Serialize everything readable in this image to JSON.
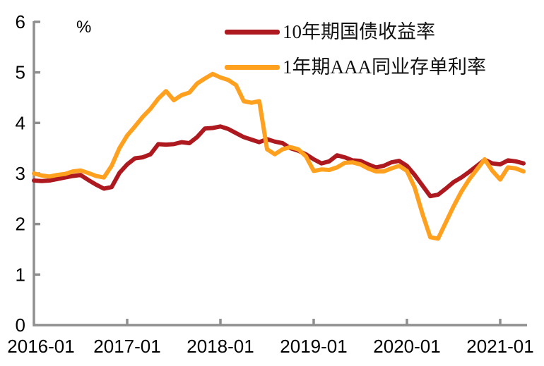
{
  "chart_data": {
    "type": "line",
    "title": "",
    "unit_label": "%",
    "xlabel": "",
    "ylabel": "%",
    "ylim": [
      0,
      6
    ],
    "y_ticks": [
      "0",
      "1",
      "2",
      "3",
      "4",
      "5",
      "6"
    ],
    "x_tick_labels": [
      "2016-01",
      "2017-01",
      "2018-01",
      "2019-01",
      "2020-01",
      "2021-01"
    ],
    "grid": false,
    "legend_position": "top-center",
    "axis_color": "#8f8f8f",
    "x": [
      "2016-01",
      "2016-02",
      "2016-03",
      "2016-04",
      "2016-05",
      "2016-06",
      "2016-07",
      "2016-08",
      "2016-09",
      "2016-10",
      "2016-11",
      "2016-12",
      "2017-01",
      "2017-02",
      "2017-03",
      "2017-04",
      "2017-05",
      "2017-06",
      "2017-07",
      "2017-08",
      "2017-09",
      "2017-10",
      "2017-11",
      "2017-12",
      "2018-01",
      "2018-02",
      "2018-03",
      "2018-04",
      "2018-05",
      "2018-06",
      "2018-07",
      "2018-08",
      "2018-09",
      "2018-10",
      "2018-11",
      "2018-12",
      "2019-01",
      "2019-02",
      "2019-03",
      "2019-04",
      "2019-05",
      "2019-06",
      "2019-07",
      "2019-08",
      "2019-09",
      "2019-10",
      "2019-11",
      "2019-12",
      "2020-01",
      "2020-02",
      "2020-03",
      "2020-04",
      "2020-05",
      "2020-06",
      "2020-07",
      "2020-08",
      "2020-09",
      "2020-10",
      "2020-11",
      "2020-12",
      "2021-01",
      "2021-02",
      "2021-03",
      "2021-04"
    ],
    "series": [
      {
        "name": "10年期国债收益率",
        "color": "#ad191e",
        "values": [
          2.86,
          2.85,
          2.86,
          2.89,
          2.92,
          2.95,
          2.97,
          2.87,
          2.78,
          2.7,
          2.73,
          3.01,
          3.18,
          3.3,
          3.32,
          3.38,
          3.58,
          3.57,
          3.58,
          3.62,
          3.6,
          3.72,
          3.89,
          3.9,
          3.93,
          3.88,
          3.8,
          3.72,
          3.67,
          3.62,
          3.68,
          3.63,
          3.6,
          3.5,
          3.45,
          3.38,
          3.28,
          3.2,
          3.24,
          3.36,
          3.32,
          3.26,
          3.25,
          3.18,
          3.12,
          3.15,
          3.22,
          3.25,
          3.15,
          2.97,
          2.76,
          2.55,
          2.58,
          2.7,
          2.83,
          2.92,
          3.03,
          3.15,
          3.27,
          3.2,
          3.18,
          3.26,
          3.24,
          3.2
        ]
      },
      {
        "name": "1年期AAA同业存单利率",
        "color": "#ffa11e",
        "values": [
          3.0,
          2.96,
          2.94,
          2.97,
          2.99,
          3.04,
          3.06,
          3.01,
          2.95,
          2.92,
          3.15,
          3.5,
          3.75,
          3.93,
          4.12,
          4.28,
          4.48,
          4.63,
          4.45,
          4.55,
          4.6,
          4.78,
          4.88,
          4.97,
          4.9,
          4.85,
          4.75,
          4.43,
          4.4,
          4.43,
          3.48,
          3.38,
          3.48,
          3.52,
          3.48,
          3.34,
          3.05,
          3.08,
          3.07,
          3.12,
          3.21,
          3.22,
          3.18,
          3.1,
          3.04,
          3.04,
          3.1,
          3.15,
          3.05,
          2.72,
          2.2,
          1.74,
          1.71,
          2.03,
          2.35,
          2.64,
          2.88,
          3.08,
          3.28,
          3.05,
          2.88,
          3.12,
          3.1,
          3.04
        ]
      }
    ]
  }
}
